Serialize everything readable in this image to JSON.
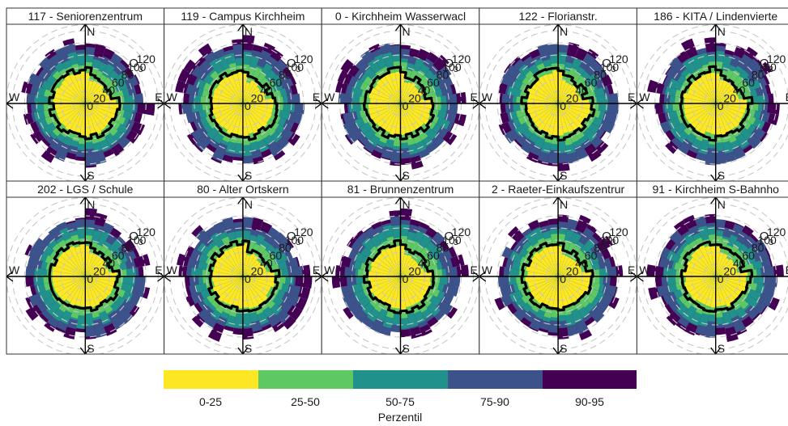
{
  "panels_row1": [
    "117 - Seniorenzentrum",
    "119 - Campus Kirchheim",
    "0 - Kirchheim Wasserwacl",
    "122 - Florianstr.",
    "186 - KITA / Lindenvierte"
  ],
  "panels_row2": [
    "202 - LGS / Schule",
    "80 - Alter Ortskern",
    "81 - Brunnenzentrum",
    "2 - Raeter-Einkaufszentrur",
    "91 - Kirchheim S-Bahnho"
  ],
  "compass": {
    "n": "N",
    "e": "E",
    "s": "S",
    "w": "W"
  },
  "radial_ticks": [
    "0",
    "20",
    "40",
    "60",
    "80",
    "100",
    "120"
  ],
  "pollutant_label": "O3",
  "legend": {
    "title": "Perzentil",
    "items": [
      {
        "label": "0-25",
        "color": "#FDE725"
      },
      {
        "label": "25-50",
        "color": "#5EC962"
      },
      {
        "label": "50-75",
        "color": "#21918C"
      },
      {
        "label": "75-90",
        "color": "#3B528B"
      },
      {
        "label": "90-95",
        "color": "#440154"
      }
    ]
  },
  "chart_data": {
    "type": "polar-percentile-rose",
    "panels": [
      "117 - Seniorenzentrum",
      "119 - Campus Kirchheim",
      "0 - Kirchheim Wasserwacl",
      "122 - Florianstr.",
      "186 - KITA / Lindenvierte",
      "202 - LGS / Schule",
      "80 - Alter Ortskern",
      "81 - Brunnenzentrum",
      "2 - Raeter-Einkaufszentrur",
      "91 - Kirchheim S-Bahnho"
    ],
    "direction_bins": 36,
    "radial_range": [
      0,
      130
    ],
    "radial_ticks": [
      0,
      20,
      40,
      60,
      80,
      100,
      120
    ],
    "percentile_classes": [
      "0-25",
      "25-50",
      "50-75",
      "75-90",
      "90-95"
    ],
    "colors": [
      "#FDE725",
      "#5EC962",
      "#21918C",
      "#3B528B",
      "#440154"
    ],
    "median_line": "black",
    "series": [
      {
        "name": "0-25",
        "approx_radius": 52
      },
      {
        "name": "25-50",
        "approx_radius": 66
      },
      {
        "name": "50-75",
        "approx_radius": 80
      },
      {
        "name": "75-90",
        "approx_radius": 94
      },
      {
        "name": "90-95",
        "approx_radius": 104
      }
    ],
    "median_approx_radius": 56,
    "grid": true,
    "legend_position": "bottom"
  }
}
